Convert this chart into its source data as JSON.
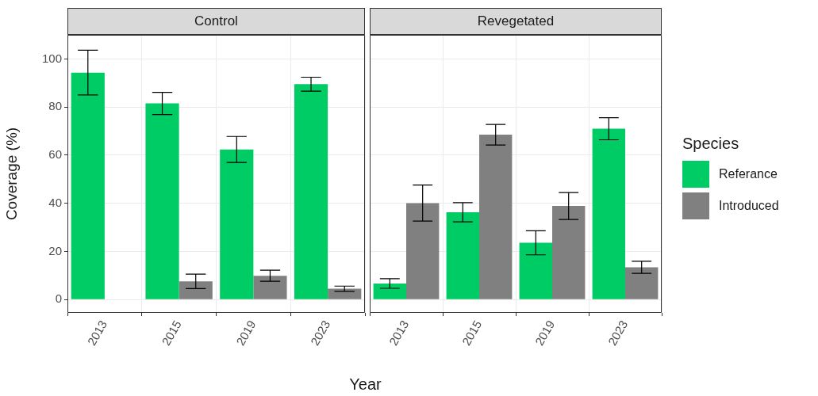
{
  "chart_data": [
    {
      "type": "bar",
      "title": "Control",
      "xlabel": "Year",
      "ylabel": "Coverage (%)",
      "categories": [
        "2013",
        "2015",
        "2019",
        "2023"
      ],
      "series": [
        {
          "color": "#00cc66",
          "values": [
            94.3,
            81.5,
            62.4,
            89.5
          ],
          "errors": [
            9.3,
            4.6,
            5.4,
            2.9
          ]
        },
        {
          "color": "#808080",
          "values": [
            0,
            7.6,
            9.9,
            4.5
          ],
          "errors": [
            null,
            3,
            2.3,
            1.1
          ]
        }
      ],
      "ylim": [
        -5.5,
        110
      ],
      "yticks": [
        0,
        20,
        40,
        60,
        80,
        100
      ],
      "grid": true,
      "legend": false
    },
    {
      "type": "bar",
      "title": "Revegetated",
      "categories": [
        "2013",
        "2015",
        "2019",
        "2023"
      ],
      "series": [
        {
          "name": "Referance",
          "color": "#00cc66",
          "values": [
            6.7,
            36.3,
            23.6,
            71
          ],
          "errors": [
            2,
            4,
            5,
            4.6
          ]
        },
        {
          "name": "Introduced",
          "color": "#808080",
          "values": [
            40.1,
            68.5,
            38.9,
            13.4
          ],
          "errors": [
            7.5,
            4.3,
            5.6,
            2.5
          ]
        }
      ],
      "ylim": [
        -5.5,
        110
      ],
      "yticks": [
        0,
        20,
        40,
        60,
        80,
        100
      ],
      "grid": true,
      "legend": "right",
      "legend_title": "Species",
      "tick_labels": "x"
    }
  ]
}
